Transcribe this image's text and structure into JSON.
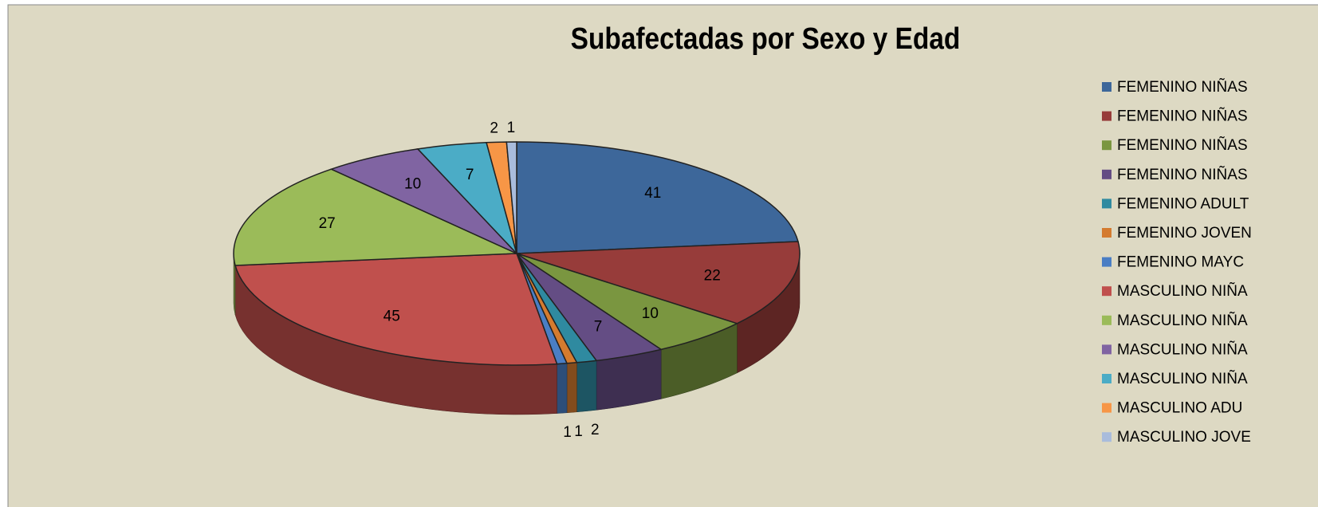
{
  "chart_data": {
    "type": "pie3d",
    "title": "Subafectadas por Sexo y Edad",
    "categories": [
      "FEMENINO NIÑAS",
      "FEMENINO NIÑAS",
      "FEMENINO NIÑAS",
      "FEMENINO NIÑAS",
      "FEMENINO ADULT",
      "FEMENINO JOVEN",
      "FEMENINO MAYC",
      "MASCULINO NIÑA",
      "MASCULINO NIÑA",
      "MASCULINO NIÑA",
      "MASCULINO NIÑA",
      "MASCULINO ADU",
      "MASCULINO JOVE"
    ],
    "values": [
      41,
      22,
      10,
      7,
      2,
      1,
      1,
      45,
      27,
      10,
      7,
      2,
      1
    ],
    "colors": [
      "#3d679a",
      "#973c3a",
      "#7a9640",
      "#644d84",
      "#2f8aa0",
      "#d47b2f",
      "#4a7ec4",
      "#c0504d",
      "#9bbb59",
      "#8064a2",
      "#4bacc6",
      "#f79646",
      "#a9bcdc"
    ],
    "legend": "right"
  }
}
